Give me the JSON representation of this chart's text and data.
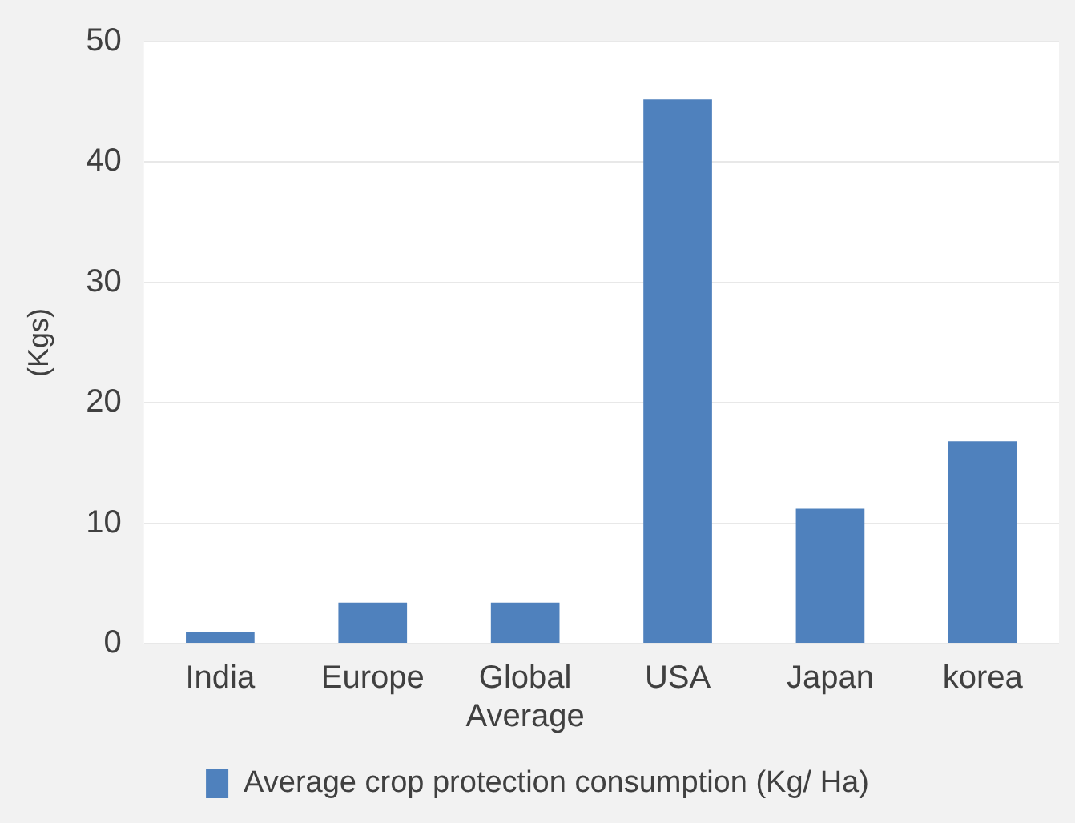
{
  "chart_data": {
    "type": "bar",
    "ylabel": "(Kgs)",
    "categories": [
      "India",
      "Europe",
      "Global Average",
      "USA",
      "Japan",
      "korea"
    ],
    "series": [
      {
        "name": "Average crop protection consumption (Kg/ Ha)",
        "color": "#4f81bd",
        "values": [
          1.0,
          3.4,
          3.4,
          45.2,
          11.2,
          16.8
        ]
      }
    ],
    "ylim": [
      0,
      50
    ],
    "yticks": [
      0,
      10,
      20,
      30,
      40,
      50
    ],
    "grid": "y",
    "legend": "bottom"
  }
}
